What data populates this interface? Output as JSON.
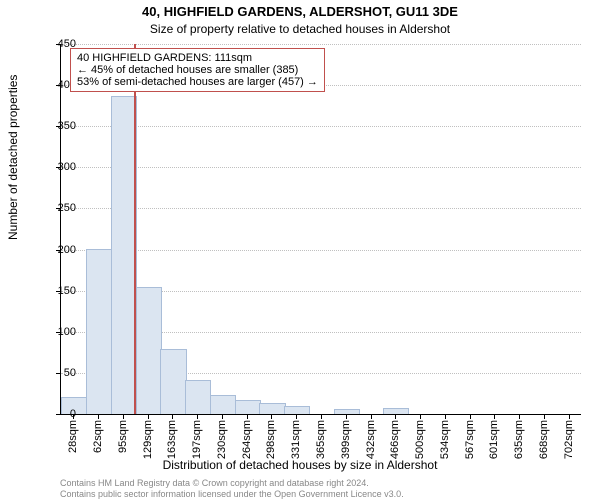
{
  "chart": {
    "type": "histogram",
    "title_line1": "40, HIGHFIELD GARDENS, ALDERSHOT, GU11 3DE",
    "title_line2": "Size of property relative to detached houses in Aldershot",
    "title_fontsize": 13,
    "subtitle_fontsize": 12,
    "ylabel": "Number of detached properties",
    "xlabel": "Distribution of detached houses by size in Aldershot",
    "axis_label_fontsize": 12,
    "tick_fontsize": 11,
    "ylim": [
      0,
      450
    ],
    "ytick_step": 50,
    "bar_color": "#dbe5f1",
    "bar_border": "#a9bdd8",
    "grid_color": "#c0c0c0",
    "background_color": "#ffffff",
    "axis_color": "#000000",
    "categories": [
      "28sqm",
      "62sqm",
      "95sqm",
      "129sqm",
      "163sqm",
      "197sqm",
      "230sqm",
      "264sqm",
      "298sqm",
      "331sqm",
      "365sqm",
      "399sqm",
      "432sqm",
      "466sqm",
      "500sqm",
      "534sqm",
      "567sqm",
      "601sqm",
      "635sqm",
      "668sqm",
      "702sqm"
    ],
    "values": [
      20,
      200,
      385,
      153,
      78,
      40,
      22,
      16,
      12,
      8,
      0,
      5,
      0,
      6,
      0,
      0,
      0,
      0,
      0,
      0,
      0
    ],
    "annotation": {
      "line1": "40 HIGHFIELD GARDENS: 111sqm",
      "line2": "← 45% of detached houses are smaller (385)",
      "line3": "53% of semi-detached houses are larger (457) →",
      "fontsize": 11,
      "border_color": "#c0504d",
      "line_color": "#c0504d",
      "line_position_sqm": 111
    },
    "credit": {
      "line1": "Contains HM Land Registry data © Crown copyright and database right 2024.",
      "line2": "Contains public sector information licensed under the Open Government Licence v3.0.",
      "fontsize": 9,
      "color": "#888888"
    }
  }
}
